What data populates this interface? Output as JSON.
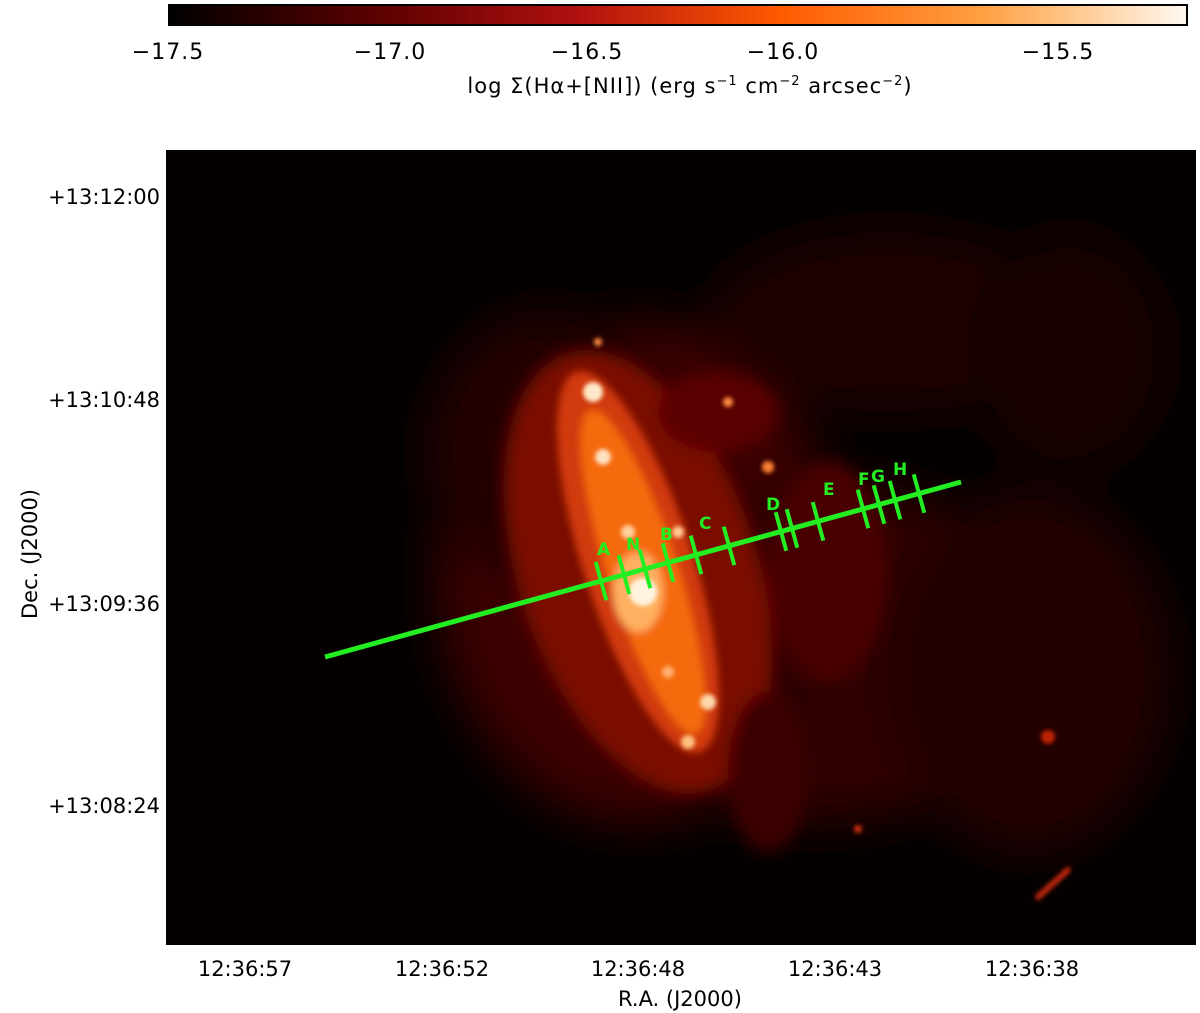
{
  "colorbar": {
    "ticks": [
      "−17.5",
      "−17.0",
      "−16.5",
      "−16.0",
      "−15.5"
    ],
    "label_prefix": "log Σ(Hα+[NII]) (erg s",
    "label_exp1": "−1",
    "label_mid1": " cm",
    "label_exp2": "−2",
    "label_mid2": " arcsec",
    "label_exp3": "−2",
    "label_suffix": ")",
    "colors": [
      "#000000",
      "#5a0000",
      "#b01010",
      "#ff5a00",
      "#ffa040",
      "#fff8f0"
    ]
  },
  "axes": {
    "y_ticks": [
      "+13:12:00",
      "+13:10:48",
      "+13:09:36",
      "+13:08:24"
    ],
    "x_ticks": [
      "12:36:57",
      "12:36:52",
      "12:36:48",
      "12:36:43",
      "12:36:38"
    ],
    "ylabel": "Dec. (J2000)",
    "xlabel": "R.A. (J2000)"
  },
  "slit": {
    "color": "#22ee22",
    "labels": [
      "A",
      "N",
      "B",
      "C",
      "D",
      "E",
      "F",
      "G",
      "H"
    ]
  }
}
